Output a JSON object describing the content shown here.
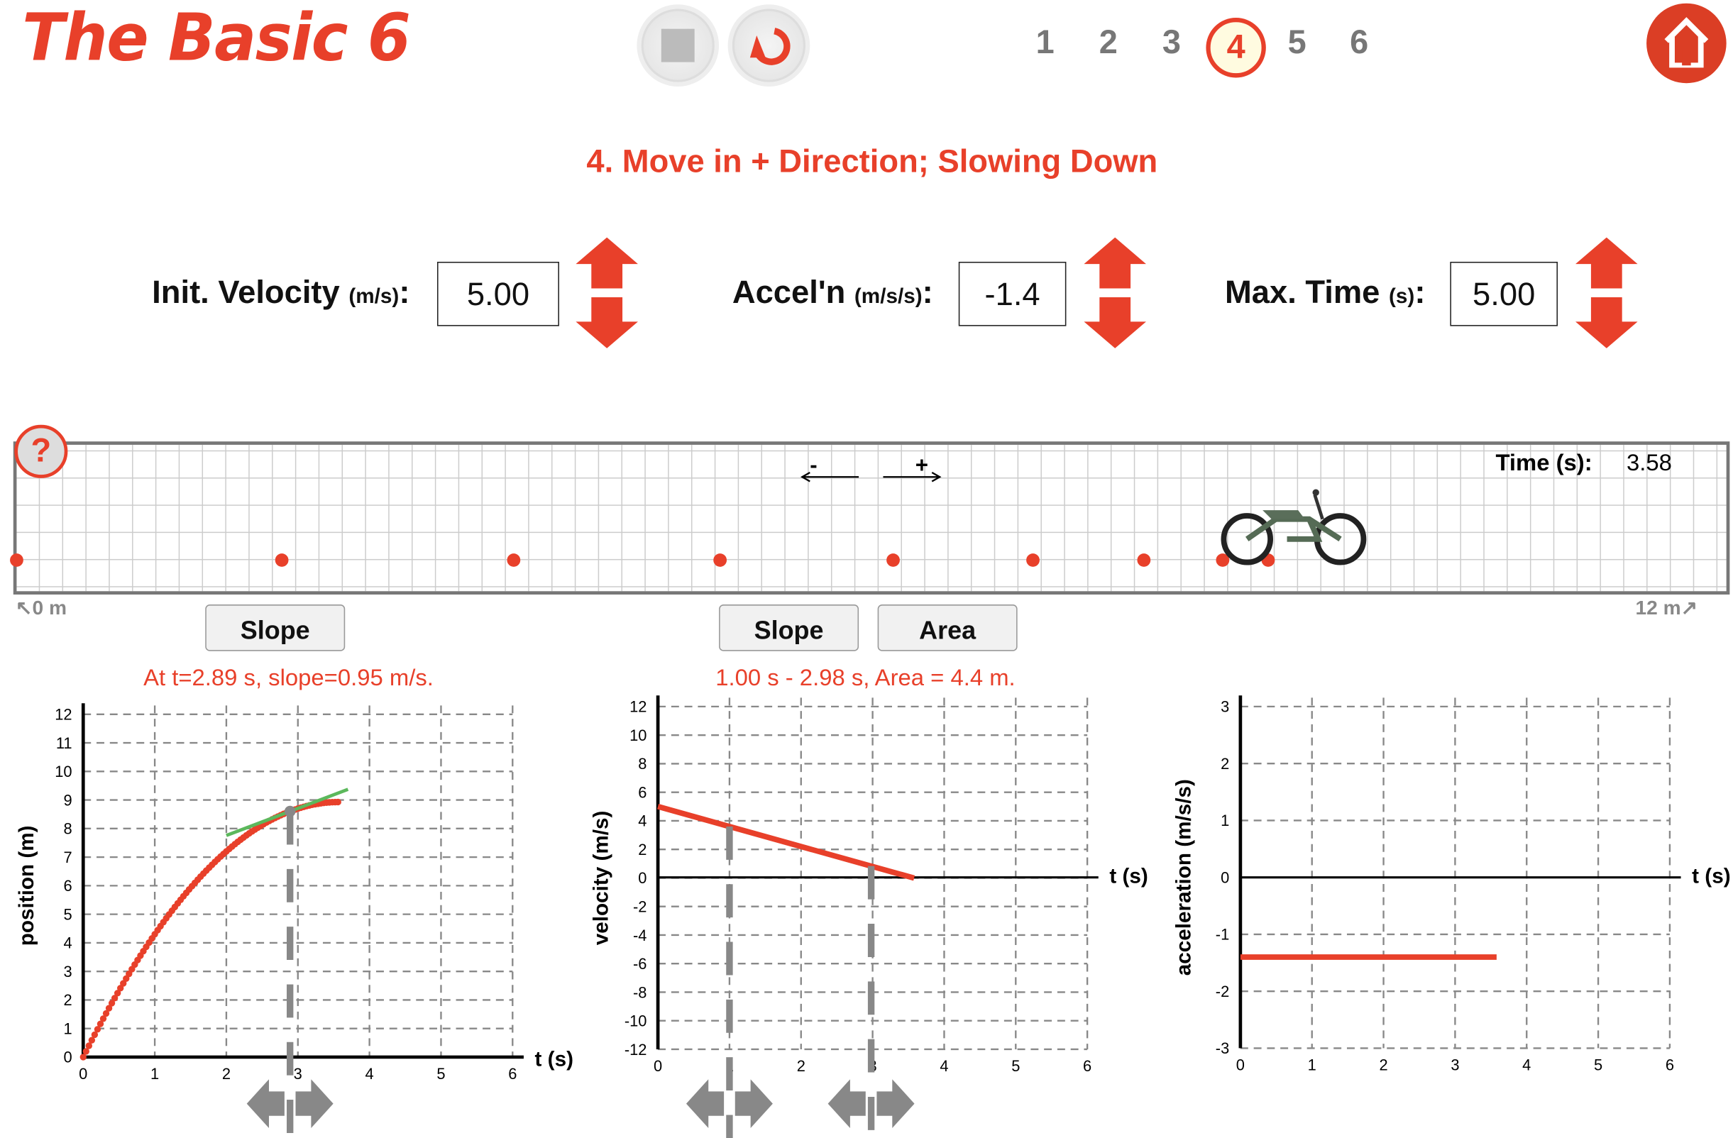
{
  "header": {
    "logo": "The Basic 6",
    "steps": [
      "1",
      "2",
      "3",
      "4",
      "5",
      "6"
    ],
    "active_step": "4",
    "stop_icon": "stop-icon",
    "reset_icon": "reset-icon",
    "home_icon": "home-icon"
  },
  "title": "4. Move in + Direction; Slowing Down",
  "controls": {
    "init_velocity": {
      "label": "Init. Velocity",
      "unit": "(m/s)",
      "colon": ":",
      "value": "5.00"
    },
    "accel": {
      "label": "Accel'n",
      "unit": "(m/s/s)",
      "colon": ":",
      "value": "-1.4"
    },
    "max_time": {
      "label": "Max. Time",
      "unit": "(s)",
      "colon": ":",
      "value": "5.00"
    }
  },
  "track": {
    "help": "?",
    "minus": "-",
    "plus": "+",
    "time_label": "Time (s):",
    "time_value": "3.58",
    "start_label": "0 m",
    "end_label": "12 m",
    "dot_positions_m": [
      0,
      1.89,
      3.55,
      5.02,
      6.26,
      7.26,
      8.05,
      8.61,
      8.94
    ],
    "range_m": [
      0,
      12
    ]
  },
  "buttons": {
    "slope1": "Slope",
    "slope2": "Slope",
    "area": "Area"
  },
  "notes": {
    "position": "At t=2.89 s, slope=0.95 m/s.",
    "velocity": "1.00 s - 2.98 s, Area = 4.4 m."
  },
  "colors": {
    "accent": "#e8402a",
    "tangent": "#5cb85c",
    "marker": "#888888"
  },
  "chart_data": [
    {
      "type": "line",
      "ylabel": "position (m)",
      "xlabel": "t (s)",
      "xlim": [
        0,
        6
      ],
      "ylim": [
        0,
        12
      ],
      "xticks": [
        "0",
        "1",
        "2",
        "3",
        "4",
        "5",
        "6"
      ],
      "yticks": [
        "0",
        "1",
        "2",
        "3",
        "4",
        "5",
        "6",
        "7",
        "8",
        "9",
        "10",
        "11",
        "12"
      ],
      "function": {
        "v0": 5,
        "a": -1.4,
        "t_end": 3.58
      },
      "tangent": {
        "t": 2.89,
        "slope": 0.95,
        "t_range": [
          2,
          3.7
        ]
      },
      "markers_t": [
        2.89
      ],
      "grid": true
    },
    {
      "type": "line",
      "ylabel": "velocity (m/s)",
      "xlabel": "t (s)",
      "xlim": [
        0,
        6
      ],
      "ylim": [
        -12,
        12
      ],
      "xticks": [
        "0",
        "1",
        "2",
        "3",
        "4",
        "5",
        "6"
      ],
      "yticks": [
        "-12",
        "-10",
        "-8",
        "-6",
        "-4",
        "-2",
        "0",
        "2",
        "4",
        "6",
        "8",
        "10",
        "12"
      ],
      "function": {
        "v0": 5,
        "a": -1.4,
        "t_end": 3.58
      },
      "markers_t": [
        1.0,
        2.98
      ],
      "grid": true
    },
    {
      "type": "line",
      "ylabel": "acceleration (m/s/s)",
      "xlabel": "t (s)",
      "xlim": [
        0,
        6
      ],
      "ylim": [
        -3,
        3
      ],
      "xticks": [
        "0",
        "1",
        "2",
        "3",
        "4",
        "5",
        "6"
      ],
      "yticks": [
        "-3",
        "-2",
        "-1",
        "0",
        "1",
        "2",
        "3"
      ],
      "function": {
        "a": -1.4,
        "t_end": 3.58
      },
      "grid": true
    }
  ]
}
